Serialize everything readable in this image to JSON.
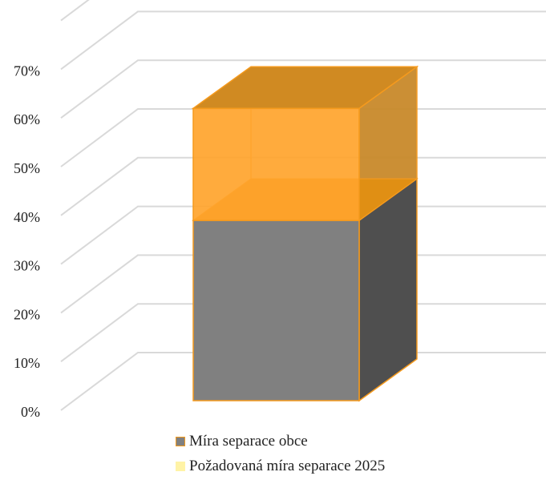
{
  "chart_data": {
    "type": "bar",
    "style": "3d-stacked",
    "categories": [
      ""
    ],
    "series": [
      {
        "name": "Míra separace obce",
        "values": [
          0.37
        ],
        "color": "#808080",
        "border": "#f59a1d"
      },
      {
        "name": "Požadovaná míra separace 2025",
        "values": [
          0.6
        ],
        "color": "#ffa42c",
        "border": "#f59a1d"
      }
    ],
    "y_ticks": [
      "0%",
      "10%",
      "20%",
      "30%",
      "40%",
      "50%",
      "60%",
      "70%"
    ],
    "ylim": [
      0,
      0.8
    ],
    "grid": true,
    "legend_position": "bottom"
  },
  "legend": {
    "item1": "Míra separace obce",
    "item2": "Požadovaná míra separace 2025"
  }
}
